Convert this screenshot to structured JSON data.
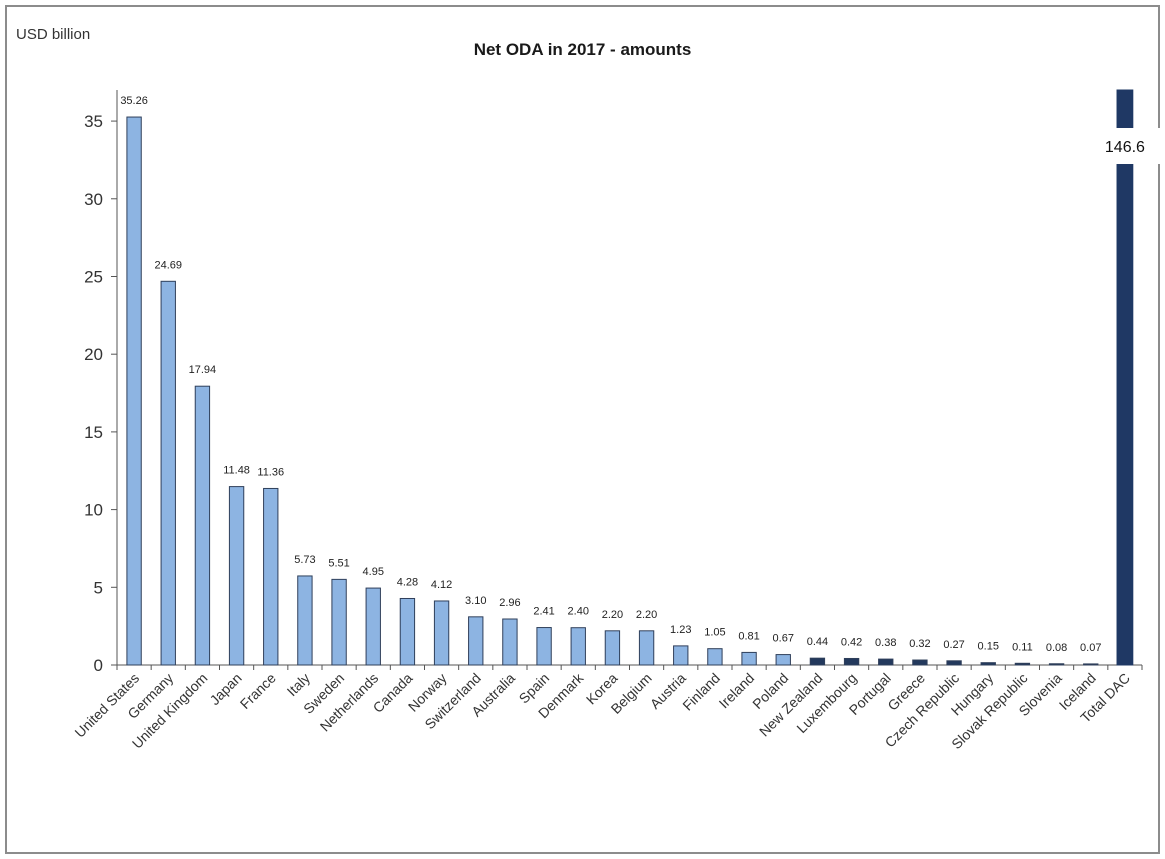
{
  "chart_data": {
    "type": "bar",
    "title": "Net ODA in 2017 - amounts",
    "ylabel": "USD billion",
    "xlabel": "",
    "ylim": [
      0,
      37
    ],
    "yticks": [
      0,
      5,
      10,
      15,
      20,
      25,
      30,
      35
    ],
    "grid": false,
    "legend": "none",
    "categories": [
      "United States",
      "Germany",
      "United Kingdom",
      "Japan",
      "France",
      "Italy",
      "Sweden",
      "Netherlands",
      "Canada",
      "Norway",
      "Switzerland",
      "Australia",
      "Spain",
      "Denmark",
      "Korea",
      "Belgium",
      "Austria",
      "Finland",
      "Ireland",
      "Poland",
      "New Zealand",
      "Luxembourg",
      "Portugal",
      "Greece",
      "Czech Republic",
      "Hungary",
      "Slovak Republic",
      "Slovenia",
      "Iceland",
      "Total DAC"
    ],
    "values": [
      35.26,
      24.69,
      17.94,
      11.48,
      11.36,
      5.73,
      5.51,
      4.95,
      4.28,
      4.12,
      3.1,
      2.96,
      2.41,
      2.4,
      2.2,
      2.2,
      1.23,
      1.05,
      0.81,
      0.67,
      0.44,
      0.42,
      0.38,
      0.32,
      0.27,
      0.15,
      0.11,
      0.08,
      0.07,
      146.6
    ],
    "data_labels": [
      "35.26",
      "24.69",
      "17.94",
      "11.48",
      "11.36",
      "5.73",
      "5.51",
      "4.95",
      "4.28",
      "4.12",
      "3.10",
      "2.96",
      "2.41",
      "2.40",
      "2.20",
      "2.20",
      "1.23",
      "1.05",
      "0.81",
      "0.67",
      "0.44",
      "0.42",
      "0.38",
      "0.32",
      "0.27",
      "0.15",
      "0.11",
      "0.08",
      "0.07",
      "146.6"
    ],
    "colors": {
      "bar_fill": "#8db4e2",
      "bar_stroke": "#2f3f5a",
      "small_bar_fill": "#23395d",
      "total_fill": "#1f3864"
    }
  }
}
